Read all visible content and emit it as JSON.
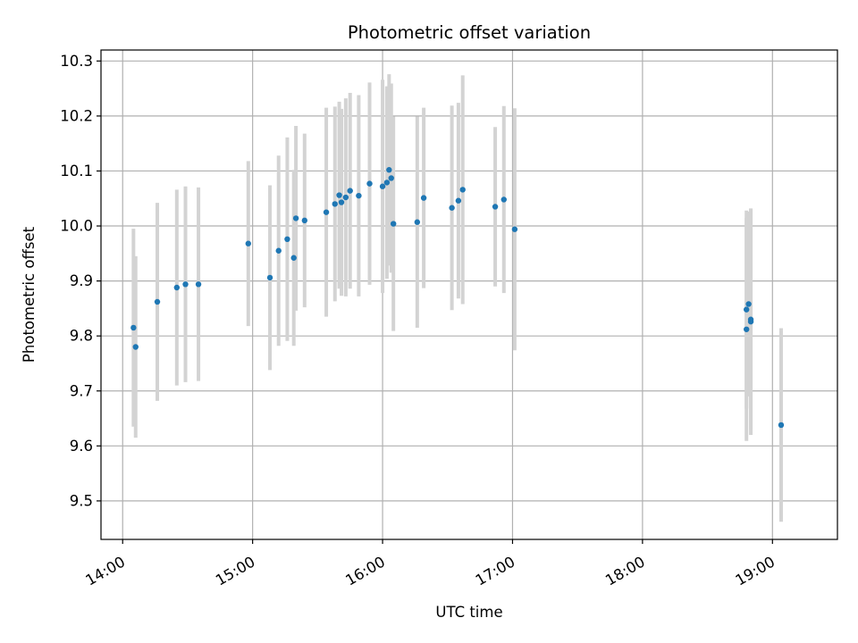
{
  "chart_data": {
    "type": "scatter",
    "title": "Photometric offset variation",
    "xlabel": "UTC time",
    "ylabel": "Photometric offset",
    "x_ticks": [
      "14:00",
      "15:00",
      "16:00",
      "17:00",
      "18:00",
      "19:00"
    ],
    "y_ticks": [
      "9.5",
      "9.6",
      "9.7",
      "9.8",
      "9.9",
      "10.0",
      "10.1",
      "10.2",
      "10.3"
    ],
    "xlim": [
      "13:50",
      "19:30"
    ],
    "ylim": [
      9.43,
      10.32
    ],
    "grid": true,
    "colors": {
      "point": "#1f77b4",
      "errorbar": "#d3d3d3",
      "grid": "#b0b0b0"
    },
    "series": [
      {
        "points": [
          {
            "x": "14:05",
            "y": 9.815,
            "err": 0.18
          },
          {
            "x": "14:06",
            "y": 9.78,
            "err": 0.165
          },
          {
            "x": "14:16",
            "y": 9.862,
            "err": 0.18
          },
          {
            "x": "14:25",
            "y": 9.888,
            "err": 0.178
          },
          {
            "x": "14:29",
            "y": 9.894,
            "err": 0.178
          },
          {
            "x": "14:35",
            "y": 9.894,
            "err": 0.176
          },
          {
            "x": "14:58",
            "y": 9.968,
            "err": 0.15
          },
          {
            "x": "15:08",
            "y": 9.906,
            "err": 0.168
          },
          {
            "x": "15:12",
            "y": 9.955,
            "err": 0.173
          },
          {
            "x": "15:16",
            "y": 9.976,
            "err": 0.185
          },
          {
            "x": "15:19",
            "y": 9.942,
            "err": 0.16
          },
          {
            "x": "15:20",
            "y": 10.014,
            "err": 0.168
          },
          {
            "x": "15:24",
            "y": 10.01,
            "err": 0.158
          },
          {
            "x": "15:34",
            "y": 10.025,
            "err": 0.19
          },
          {
            "x": "15:38",
            "y": 10.04,
            "err": 0.177
          },
          {
            "x": "15:40",
            "y": 10.056,
            "err": 0.17
          },
          {
            "x": "15:41",
            "y": 10.043,
            "err": 0.17
          },
          {
            "x": "15:43",
            "y": 10.052,
            "err": 0.18
          },
          {
            "x": "15:45",
            "y": 10.064,
            "err": 0.178
          },
          {
            "x": "15:49",
            "y": 10.055,
            "err": 0.183
          },
          {
            "x": "15:54",
            "y": 10.077,
            "err": 0.184
          },
          {
            "x": "16:00",
            "y": 10.072,
            "err": 0.194
          },
          {
            "x": "16:02",
            "y": 10.079,
            "err": 0.175
          },
          {
            "x": "16:03",
            "y": 10.102,
            "err": 0.174
          },
          {
            "x": "16:04",
            "y": 10.087,
            "err": 0.172
          },
          {
            "x": "16:05",
            "y": 10.004,
            "err": 0.195
          },
          {
            "x": "16:16",
            "y": 10.007,
            "err": 0.192
          },
          {
            "x": "16:19",
            "y": 10.051,
            "err": 0.164
          },
          {
            "x": "16:32",
            "y": 10.033,
            "err": 0.186
          },
          {
            "x": "16:35",
            "y": 10.046,
            "err": 0.178
          },
          {
            "x": "16:37",
            "y": 10.066,
            "err": 0.208
          },
          {
            "x": "16:52",
            "y": 10.035,
            "err": 0.145
          },
          {
            "x": "16:56",
            "y": 10.048,
            "err": 0.17
          },
          {
            "x": "17:01",
            "y": 9.994,
            "err": 0.22
          },
          {
            "x": "18:48",
            "y": 9.812,
            "err": 0.203
          },
          {
            "x": "18:48",
            "y": 9.848,
            "err": 0.18
          },
          {
            "x": "18:49",
            "y": 9.858,
            "err": 0.168
          },
          {
            "x": "18:50",
            "y": 9.83,
            "err": 0.2
          },
          {
            "x": "18:50",
            "y": 9.826,
            "err": 0.206
          },
          {
            "x": "19:04",
            "y": 9.638,
            "err": 0.176
          }
        ]
      }
    ]
  }
}
